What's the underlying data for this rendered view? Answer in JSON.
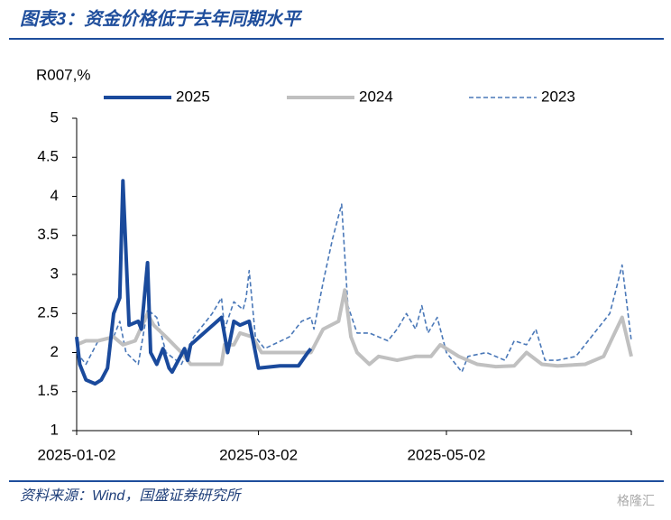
{
  "title": "图表3：资金价格低于去年同期水平",
  "source": "资料来源：Wind，国盛证券研究所",
  "watermark": "格隆汇",
  "chart_data": {
    "type": "line",
    "y_label": "R007,%",
    "xlim": [
      "2025-01-02",
      "2025-07-01"
    ],
    "xticks": [
      "2025-01-02",
      "2025-03-02",
      "2025-05-02"
    ],
    "ylim": [
      1,
      5
    ],
    "yticks": [
      1,
      1.5,
      2,
      2.5,
      3,
      3.5,
      4,
      4.5,
      5
    ],
    "series": [
      {
        "name": "2025",
        "color": "#1a4a9c",
        "style": "solid",
        "width": 4,
        "x": [
          "2025-01-02",
          "2025-01-03",
          "2025-01-05",
          "2025-01-08",
          "2025-01-10",
          "2025-01-12",
          "2025-01-14",
          "2025-01-16",
          "2025-01-17",
          "2025-01-19",
          "2025-01-22",
          "2025-01-23",
          "2025-01-25",
          "2025-01-26",
          "2025-01-28",
          "2025-01-30",
          "2025-02-01",
          "2025-02-02",
          "2025-02-04",
          "2025-02-06",
          "2025-02-07",
          "2025-02-08",
          "2025-02-18",
          "2025-02-20",
          "2025-02-22",
          "2025-02-24",
          "2025-02-27",
          "2025-02-28",
          "2025-03-02",
          "2025-03-09",
          "2025-03-15",
          "2025-03-18",
          "2025-03-19"
        ],
        "values": [
          2.2,
          1.85,
          1.65,
          1.6,
          1.65,
          1.8,
          2.5,
          2.7,
          4.2,
          2.35,
          2.4,
          2.3,
          3.15,
          2.0,
          1.85,
          2.05,
          1.8,
          1.75,
          1.9,
          2.05,
          1.9,
          2.1,
          2.45,
          2.0,
          2.4,
          2.35,
          2.4,
          2.2,
          1.8,
          1.83,
          1.83,
          2.0,
          2.05
        ]
      },
      {
        "name": "2024",
        "color": "#c0c0c0",
        "style": "solid",
        "width": 4,
        "x": [
          "2025-01-02",
          "2025-01-05",
          "2025-01-09",
          "2025-01-14",
          "2025-01-17",
          "2025-01-21",
          "2025-01-25",
          "2025-01-27",
          "2025-01-31",
          "2025-02-05",
          "2025-02-08",
          "2025-02-18",
          "2025-02-19",
          "2025-02-22",
          "2025-02-24",
          "2025-02-28",
          "2025-03-03",
          "2025-03-09",
          "2025-03-15",
          "2025-03-19",
          "2025-03-23",
          "2025-03-28",
          "2025-03-30",
          "2025-04-01",
          "2025-04-03",
          "2025-04-07",
          "2025-04-10",
          "2025-04-16",
          "2025-04-22",
          "2025-04-27",
          "2025-04-30",
          "2025-05-06",
          "2025-05-12",
          "2025-05-18",
          "2025-05-24",
          "2025-05-28",
          "2025-06-02",
          "2025-06-07",
          "2025-06-16",
          "2025-06-22",
          "2025-06-25",
          "2025-06-28",
          "2025-07-01"
        ],
        "values": [
          2.1,
          2.15,
          2.15,
          2.2,
          2.1,
          2.15,
          2.5,
          2.35,
          2.2,
          2.0,
          1.85,
          1.85,
          2.1,
          2.1,
          2.25,
          2.2,
          2.0,
          2.0,
          2.0,
          2.0,
          2.3,
          2.4,
          2.8,
          2.2,
          2.0,
          1.85,
          1.95,
          1.9,
          1.95,
          1.95,
          2.1,
          1.95,
          1.85,
          1.82,
          1.83,
          2.0,
          1.85,
          1.83,
          1.85,
          1.95,
          2.2,
          2.45,
          1.95
        ]
      },
      {
        "name": "2023",
        "color": "#4a78b8",
        "style": "dashed",
        "width": 1.6,
        "x": [
          "2025-01-02",
          "2025-01-05",
          "2025-01-09",
          "2025-01-14",
          "2025-01-16",
          "2025-01-18",
          "2025-01-22",
          "2025-01-25",
          "2025-01-28",
          "2025-01-31",
          "2025-02-05",
          "2025-02-09",
          "2025-02-15",
          "2025-02-18",
          "2025-02-19",
          "2025-02-22",
          "2025-02-25",
          "2025-02-26",
          "2025-02-27",
          "2025-03-01",
          "2025-03-04",
          "2025-03-12",
          "2025-03-16",
          "2025-03-19",
          "2025-03-20",
          "2025-03-23",
          "2025-03-26",
          "2025-03-29",
          "2025-03-31",
          "2025-04-03",
          "2025-04-07",
          "2025-04-13",
          "2025-04-16",
          "2025-04-19",
          "2025-04-22",
          "2025-04-24",
          "2025-04-26",
          "2025-04-29",
          "2025-05-02",
          "2025-05-05",
          "2025-05-07",
          "2025-05-09",
          "2025-05-15",
          "2025-05-21",
          "2025-05-24",
          "2025-05-28",
          "2025-05-31",
          "2025-06-03",
          "2025-06-07",
          "2025-06-13",
          "2025-06-19",
          "2025-06-24",
          "2025-06-26",
          "2025-06-28",
          "2025-07-01"
        ],
        "values": [
          2.0,
          1.85,
          2.15,
          2.2,
          2.4,
          2.0,
          1.85,
          2.55,
          2.45,
          2.0,
          1.85,
          2.2,
          2.5,
          2.7,
          2.3,
          2.65,
          2.55,
          2.7,
          3.05,
          2.2,
          2.05,
          2.2,
          2.4,
          2.45,
          2.3,
          2.9,
          3.45,
          3.9,
          2.6,
          2.25,
          2.25,
          2.15,
          2.3,
          2.5,
          2.3,
          2.6,
          2.25,
          2.45,
          2.0,
          1.85,
          1.75,
          1.95,
          2.0,
          1.9,
          2.15,
          2.1,
          2.3,
          1.9,
          1.9,
          1.95,
          2.25,
          2.5,
          2.8,
          3.12,
          2.15
        ]
      }
    ]
  }
}
